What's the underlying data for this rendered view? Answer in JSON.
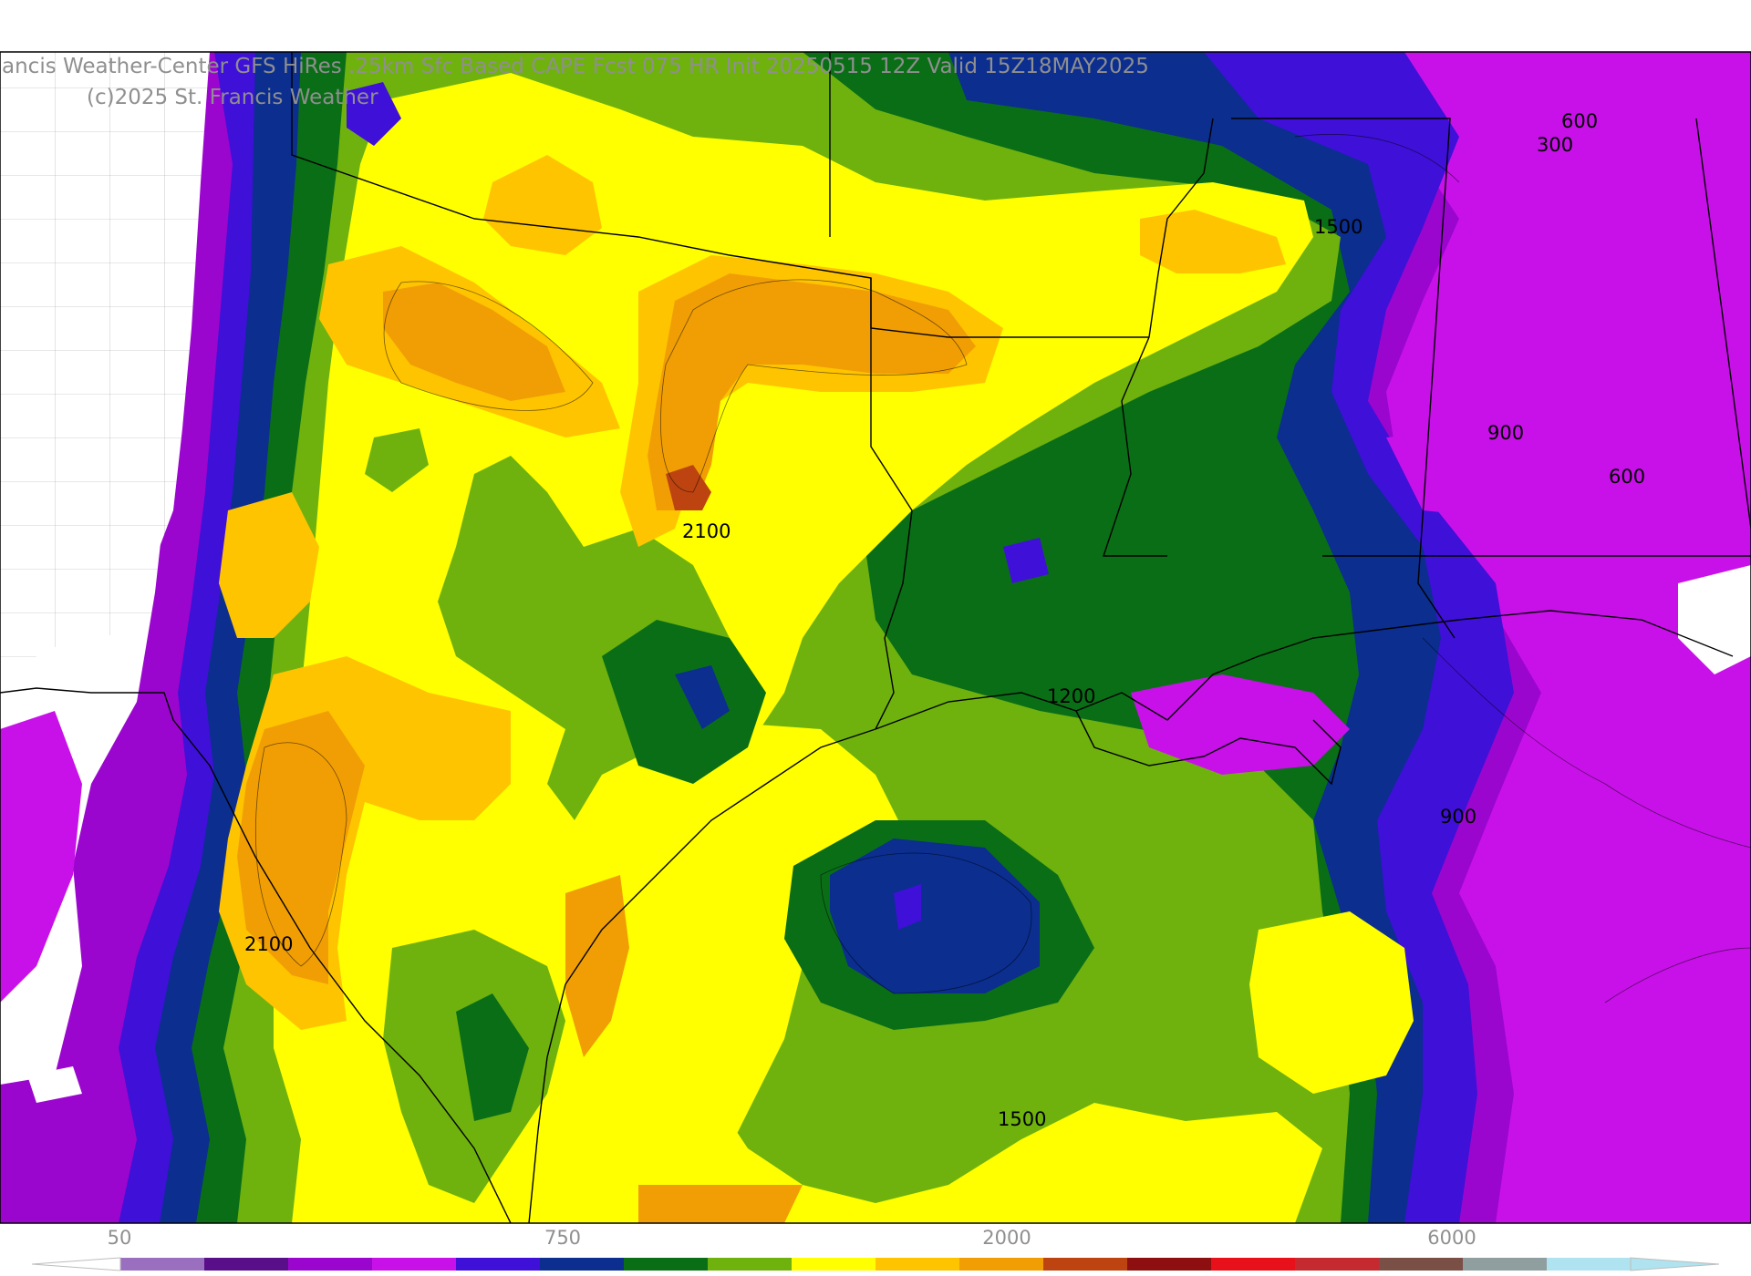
{
  "header": {
    "title": "ancis Weather-Center GFS HiRes .25km Sfc Based CAPE Fcst 075 HR Init 20250515 12Z  Valid 15Z18MAY2025",
    "credit": "(c)2025 St. Francis Weather"
  },
  "contour_labels": [
    "2100",
    "2100",
    "1500",
    "600",
    "300",
    "900",
    "600",
    "1200",
    "900",
    "1500"
  ],
  "colorbar": {
    "labels": [
      "50",
      "750",
      "2000",
      "6000"
    ],
    "colors": [
      "#9a6fc0",
      "#5a0f8a",
      "#9b06cf",
      "#c811e8",
      "#3f10d8",
      "#0b2e8f",
      "#0a6e17",
      "#6fb20e",
      "#ffff00",
      "#ffc400",
      "#f19e05",
      "#bd4410",
      "#8d0f0f",
      "#e8101a",
      "#c42a30",
      "#7a4f46",
      "#8f9e9e",
      "#aee3ef"
    ]
  },
  "palette": {
    "text_gray": "#8f8f8f",
    "land": "#ffffff",
    "border": "#000000"
  }
}
